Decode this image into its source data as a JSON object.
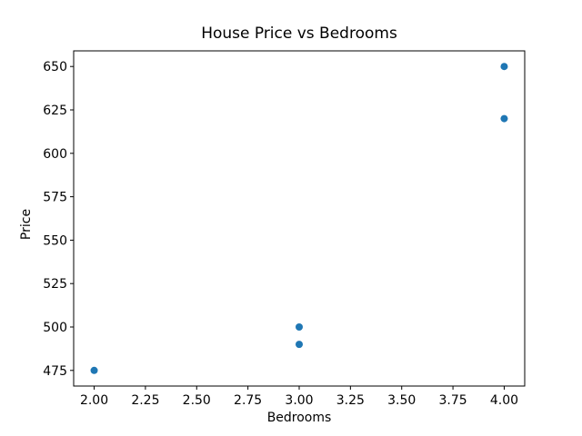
{
  "chart_data": {
    "type": "scatter",
    "title": "House Price vs Bedrooms",
    "xlabel": "Bedrooms",
    "ylabel": "Price",
    "points": [
      {
        "x": 2,
        "y": 475
      },
      {
        "x": 3,
        "y": 490
      },
      {
        "x": 3,
        "y": 500
      },
      {
        "x": 4,
        "y": 620
      },
      {
        "x": 4,
        "y": 650
      }
    ],
    "x_ticks": {
      "values": [
        2.0,
        2.25,
        2.5,
        2.75,
        3.0,
        3.25,
        3.5,
        3.75,
        4.0
      ],
      "labels": [
        "2.00",
        "2.25",
        "2.50",
        "2.75",
        "3.00",
        "3.25",
        "3.50",
        "3.75",
        "4.00"
      ]
    },
    "y_ticks": {
      "values": [
        475,
        500,
        525,
        550,
        575,
        600,
        625,
        650
      ],
      "labels": [
        "475",
        "500",
        "525",
        "550",
        "575",
        "600",
        "625",
        "650"
      ]
    },
    "xlim": [
      1.9,
      4.1
    ],
    "ylim": [
      466,
      659
    ],
    "grid": false,
    "legend": null,
    "marker_color": "#1f77b4",
    "axis_color": "#000000",
    "background_color": "#ffffff"
  }
}
